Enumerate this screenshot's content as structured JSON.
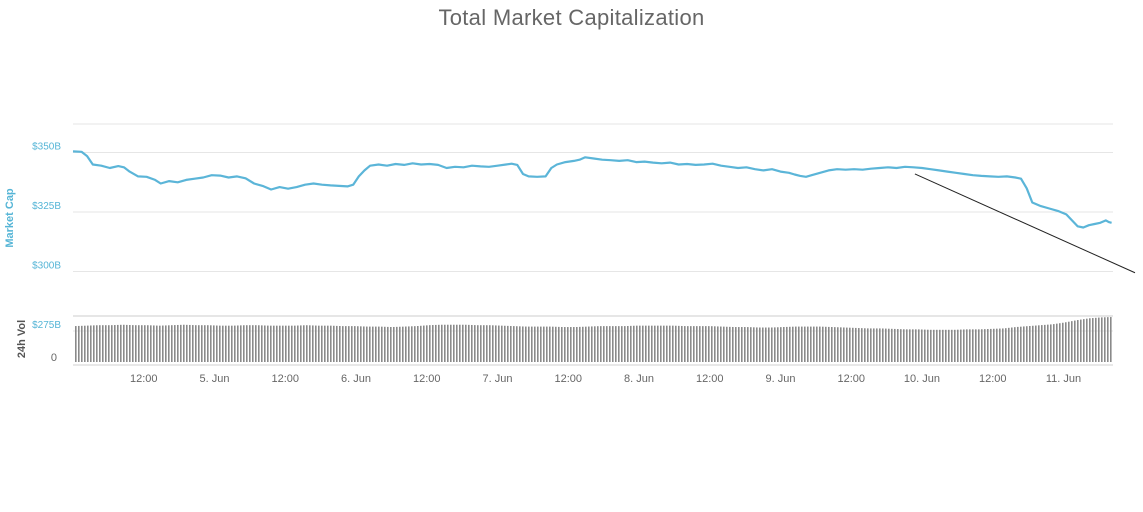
{
  "title": "Total Market Capitalization",
  "colors": {
    "line": "#5bb5d8",
    "volume": "#8a8a8a",
    "grid": "#e6e6e6",
    "trend": "#222222"
  },
  "chart_data": {
    "type": "line",
    "title": "Total Market Capitalization",
    "ylabel": "Market Cap",
    "y2label": "24h Vol",
    "ylim": [
      262,
      362
    ],
    "yticks": [
      {
        "value": 350,
        "label": "$350B"
      },
      {
        "value": 325,
        "label": "$325B"
      },
      {
        "value": 300,
        "label": "$300B"
      },
      {
        "value": 275,
        "label": "$275B"
      }
    ],
    "vol_ticks": [
      {
        "value": 0,
        "label": "0"
      }
    ],
    "xlim": [
      0,
      7.35
    ],
    "xticks": [
      {
        "x": 0.5,
        "label": "12:00"
      },
      {
        "x": 1.0,
        "label": "5. Jun"
      },
      {
        "x": 1.5,
        "label": "12:00"
      },
      {
        "x": 2.0,
        "label": "6. Jun"
      },
      {
        "x": 2.5,
        "label": "12:00"
      },
      {
        "x": 3.0,
        "label": "7. Jun"
      },
      {
        "x": 3.5,
        "label": "12:00"
      },
      {
        "x": 4.0,
        "label": "8. Jun"
      },
      {
        "x": 4.5,
        "label": "12:00"
      },
      {
        "x": 5.0,
        "label": "9. Jun"
      },
      {
        "x": 5.5,
        "label": "12:00"
      },
      {
        "x": 6.0,
        "label": "10. Jun"
      },
      {
        "x": 6.5,
        "label": "12:00"
      },
      {
        "x": 7.0,
        "label": "11. Jun"
      }
    ],
    "grid": true,
    "series": [
      {
        "name": "Market Cap",
        "points": [
          [
            0.0,
            350.5
          ],
          [
            0.06,
            350.3
          ],
          [
            0.1,
            348.5
          ],
          [
            0.14,
            345.0
          ],
          [
            0.2,
            344.5
          ],
          [
            0.26,
            343.5
          ],
          [
            0.32,
            344.3
          ],
          [
            0.36,
            343.8
          ],
          [
            0.4,
            342.0
          ],
          [
            0.46,
            340.0
          ],
          [
            0.52,
            339.8
          ],
          [
            0.58,
            338.5
          ],
          [
            0.62,
            337.0
          ],
          [
            0.68,
            338.0
          ],
          [
            0.74,
            337.5
          ],
          [
            0.8,
            338.5
          ],
          [
            0.86,
            339.0
          ],
          [
            0.92,
            339.5
          ],
          [
            0.98,
            340.5
          ],
          [
            1.04,
            340.3
          ],
          [
            1.1,
            339.5
          ],
          [
            1.16,
            340.0
          ],
          [
            1.22,
            339.2
          ],
          [
            1.28,
            337.0
          ],
          [
            1.34,
            336.0
          ],
          [
            1.4,
            334.5
          ],
          [
            1.46,
            335.5
          ],
          [
            1.52,
            334.8
          ],
          [
            1.58,
            335.5
          ],
          [
            1.64,
            336.5
          ],
          [
            1.7,
            337.0
          ],
          [
            1.76,
            336.5
          ],
          [
            1.82,
            336.2
          ],
          [
            1.88,
            336.0
          ],
          [
            1.94,
            335.8
          ],
          [
            1.98,
            336.5
          ],
          [
            2.02,
            340.0
          ],
          [
            2.06,
            342.5
          ],
          [
            2.1,
            344.5
          ],
          [
            2.16,
            345.0
          ],
          [
            2.22,
            344.5
          ],
          [
            2.28,
            345.2
          ],
          [
            2.34,
            344.8
          ],
          [
            2.4,
            345.5
          ],
          [
            2.46,
            345.0
          ],
          [
            2.52,
            345.2
          ],
          [
            2.58,
            344.8
          ],
          [
            2.64,
            343.5
          ],
          [
            2.7,
            344.0
          ],
          [
            2.76,
            343.8
          ],
          [
            2.82,
            344.5
          ],
          [
            2.88,
            344.2
          ],
          [
            2.94,
            344.0
          ],
          [
            3.0,
            344.5
          ],
          [
            3.06,
            345.0
          ],
          [
            3.1,
            345.3
          ],
          [
            3.14,
            344.8
          ],
          [
            3.18,
            341.0
          ],
          [
            3.22,
            340.0
          ],
          [
            3.28,
            339.8
          ],
          [
            3.34,
            340.0
          ],
          [
            3.38,
            343.5
          ],
          [
            3.42,
            345.0
          ],
          [
            3.48,
            346.0
          ],
          [
            3.54,
            346.5
          ],
          [
            3.58,
            347.0
          ],
          [
            3.62,
            348.0
          ],
          [
            3.68,
            347.5
          ],
          [
            3.74,
            347.0
          ],
          [
            3.8,
            346.8
          ],
          [
            3.86,
            346.5
          ],
          [
            3.92,
            346.8
          ],
          [
            3.98,
            346.0
          ],
          [
            4.04,
            346.2
          ],
          [
            4.1,
            345.8
          ],
          [
            4.16,
            345.5
          ],
          [
            4.22,
            345.8
          ],
          [
            4.28,
            345.0
          ],
          [
            4.34,
            345.2
          ],
          [
            4.4,
            344.8
          ],
          [
            4.46,
            345.0
          ],
          [
            4.52,
            345.3
          ],
          [
            4.58,
            344.5
          ],
          [
            4.64,
            344.0
          ],
          [
            4.7,
            343.5
          ],
          [
            4.76,
            343.8
          ],
          [
            4.82,
            343.0
          ],
          [
            4.88,
            342.5
          ],
          [
            4.94,
            343.0
          ],
          [
            5.0,
            342.0
          ],
          [
            5.06,
            341.5
          ],
          [
            5.1,
            340.8
          ],
          [
            5.14,
            340.2
          ],
          [
            5.18,
            339.8
          ],
          [
            5.22,
            340.5
          ],
          [
            5.28,
            341.5
          ],
          [
            5.34,
            342.5
          ],
          [
            5.4,
            343.0
          ],
          [
            5.46,
            342.8
          ],
          [
            5.52,
            343.0
          ],
          [
            5.58,
            342.8
          ],
          [
            5.64,
            343.2
          ],
          [
            5.7,
            343.5
          ],
          [
            5.76,
            343.8
          ],
          [
            5.82,
            343.5
          ],
          [
            5.88,
            344.0
          ],
          [
            5.94,
            343.8
          ],
          [
            6.0,
            343.5
          ],
          [
            6.06,
            343.0
          ],
          [
            6.12,
            342.5
          ],
          [
            6.18,
            342.0
          ],
          [
            6.24,
            341.5
          ],
          [
            6.3,
            341.0
          ],
          [
            6.36,
            340.5
          ],
          [
            6.42,
            340.2
          ],
          [
            6.48,
            340.0
          ],
          [
            6.54,
            339.8
          ],
          [
            6.6,
            340.0
          ],
          [
            6.66,
            339.5
          ],
          [
            6.7,
            339.0
          ],
          [
            6.74,
            335.0
          ],
          [
            6.78,
            329.0
          ],
          [
            6.84,
            327.5
          ],
          [
            6.9,
            326.5
          ],
          [
            6.96,
            325.5
          ],
          [
            7.02,
            324.0
          ],
          [
            7.06,
            321.5
          ],
          [
            7.1,
            319.0
          ],
          [
            7.14,
            318.5
          ],
          [
            7.18,
            319.5
          ],
          [
            7.22,
            320.0
          ],
          [
            7.26,
            320.5
          ],
          [
            7.3,
            321.5
          ],
          [
            7.32,
            320.8
          ],
          [
            7.34,
            320.5
          ]
        ]
      }
    ],
    "annotations": [
      {
        "type": "trendline",
        "from": [
          5.95,
          341.0
        ],
        "to": [
          7.35,
          299.5
        ]
      }
    ],
    "volume": {
      "name": "24h Vol",
      "levels": [
        0.78,
        0.79,
        0.8,
        0.8,
        0.81,
        0.8,
        0.8,
        0.79,
        0.8,
        0.81,
        0.8,
        0.8,
        0.79,
        0.79,
        0.8,
        0.8,
        0.79,
        0.79,
        0.79,
        0.8,
        0.79,
        0.79,
        0.78,
        0.78,
        0.77,
        0.77,
        0.76,
        0.77,
        0.78,
        0.8,
        0.81,
        0.81,
        0.81,
        0.8,
        0.8,
        0.79,
        0.78,
        0.77,
        0.77,
        0.77,
        0.76,
        0.76,
        0.77,
        0.78,
        0.78,
        0.78,
        0.79,
        0.79,
        0.79,
        0.79,
        0.78,
        0.78,
        0.78,
        0.77,
        0.76,
        0.76,
        0.75,
        0.75,
        0.76,
        0.77,
        0.77,
        0.77,
        0.76,
        0.75,
        0.74,
        0.73,
        0.73,
        0.72,
        0.71,
        0.71,
        0.7,
        0.7,
        0.7,
        0.71,
        0.71,
        0.72,
        0.73,
        0.76,
        0.78,
        0.8,
        0.82,
        0.86,
        0.91,
        0.95,
        0.97,
        0.98
      ]
    }
  }
}
